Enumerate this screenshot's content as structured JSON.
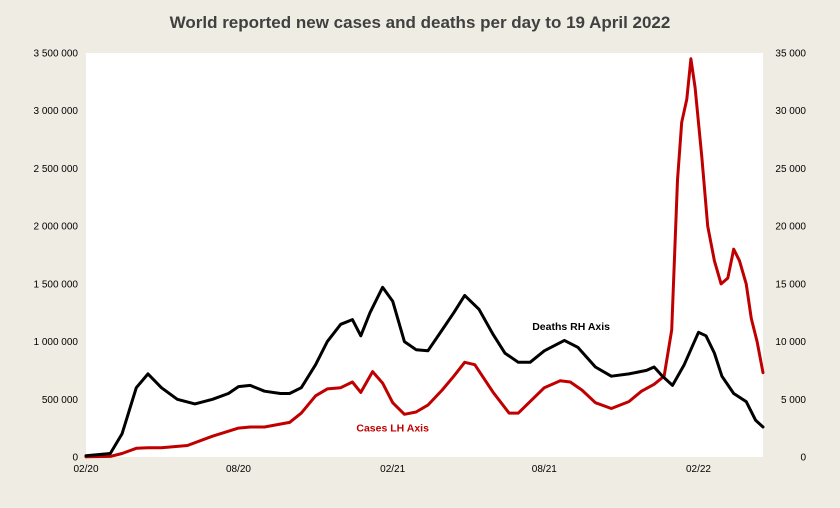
{
  "chart_data": {
    "type": "line",
    "title": "World reported new cases and deaths per day to 19 April 2022",
    "x_ticks": [
      "02/20",
      "08/20",
      "02/21",
      "08/21",
      "02/22"
    ],
    "x_range": [
      "2020-02-01",
      "2022-04-19"
    ],
    "y_left": {
      "ticks": [
        "0",
        "500 000",
        "1 000 000",
        "1 500 000",
        "2 000 000",
        "2 500 000",
        "3 000 000",
        "3 500 000"
      ],
      "range": [
        0,
        3500000
      ]
    },
    "y_right": {
      "ticks": [
        "0",
        "5 000",
        "10 000",
        "15 000",
        "20 000",
        "25 000",
        "30 000",
        "35 000"
      ],
      "range": [
        0,
        35000
      ]
    },
    "series": [
      {
        "name": "Cases LH Axis",
        "axis": "left",
        "color": "#c00000",
        "points": [
          [
            "2020-02-01",
            2000
          ],
          [
            "2020-03-01",
            5000
          ],
          [
            "2020-03-15",
            30000
          ],
          [
            "2020-04-01",
            75000
          ],
          [
            "2020-04-15",
            80000
          ],
          [
            "2020-05-01",
            80000
          ],
          [
            "2020-06-01",
            100000
          ],
          [
            "2020-07-01",
            180000
          ],
          [
            "2020-08-01",
            250000
          ],
          [
            "2020-08-15",
            260000
          ],
          [
            "2020-09-01",
            260000
          ],
          [
            "2020-10-01",
            300000
          ],
          [
            "2020-10-15",
            380000
          ],
          [
            "2020-11-01",
            530000
          ],
          [
            "2020-11-15",
            590000
          ],
          [
            "2020-12-01",
            600000
          ],
          [
            "2020-12-15",
            650000
          ],
          [
            "2020-12-25",
            560000
          ],
          [
            "2021-01-08",
            740000
          ],
          [
            "2021-01-20",
            640000
          ],
          [
            "2021-02-01",
            470000
          ],
          [
            "2021-02-15",
            370000
          ],
          [
            "2021-03-01",
            390000
          ],
          [
            "2021-03-15",
            450000
          ],
          [
            "2021-04-01",
            580000
          ],
          [
            "2021-04-15",
            700000
          ],
          [
            "2021-04-28",
            820000
          ],
          [
            "2021-05-10",
            800000
          ],
          [
            "2021-06-01",
            560000
          ],
          [
            "2021-06-20",
            380000
          ],
          [
            "2021-07-01",
            380000
          ],
          [
            "2021-07-15",
            480000
          ],
          [
            "2021-08-01",
            600000
          ],
          [
            "2021-08-20",
            660000
          ],
          [
            "2021-09-01",
            650000
          ],
          [
            "2021-09-15",
            580000
          ],
          [
            "2021-10-01",
            470000
          ],
          [
            "2021-10-20",
            420000
          ],
          [
            "2021-11-10",
            480000
          ],
          [
            "2021-11-25",
            570000
          ],
          [
            "2021-12-10",
            630000
          ],
          [
            "2021-12-22",
            700000
          ],
          [
            "2021-12-31",
            1100000
          ],
          [
            "2022-01-07",
            2400000
          ],
          [
            "2022-01-12",
            2900000
          ],
          [
            "2022-01-18",
            3100000
          ],
          [
            "2022-01-23",
            3450000
          ],
          [
            "2022-01-28",
            3200000
          ],
          [
            "2022-02-05",
            2600000
          ],
          [
            "2022-02-12",
            2000000
          ],
          [
            "2022-02-20",
            1700000
          ],
          [
            "2022-02-28",
            1500000
          ],
          [
            "2022-03-08",
            1550000
          ],
          [
            "2022-03-15",
            1800000
          ],
          [
            "2022-03-22",
            1700000
          ],
          [
            "2022-03-30",
            1500000
          ],
          [
            "2022-04-05",
            1200000
          ],
          [
            "2022-04-12",
            1000000
          ],
          [
            "2022-04-19",
            730000
          ]
        ]
      },
      {
        "name": "Deaths RH Axis",
        "axis": "right",
        "color": "#000000",
        "points": [
          [
            "2020-02-01",
            100
          ],
          [
            "2020-03-01",
            300
          ],
          [
            "2020-03-15",
            2000
          ],
          [
            "2020-04-01",
            6000
          ],
          [
            "2020-04-15",
            7200
          ],
          [
            "2020-05-01",
            6000
          ],
          [
            "2020-05-20",
            5000
          ],
          [
            "2020-06-10",
            4600
          ],
          [
            "2020-07-01",
            5000
          ],
          [
            "2020-07-20",
            5500
          ],
          [
            "2020-08-01",
            6100
          ],
          [
            "2020-08-15",
            6200
          ],
          [
            "2020-09-01",
            5700
          ],
          [
            "2020-09-20",
            5500
          ],
          [
            "2020-10-01",
            5500
          ],
          [
            "2020-10-15",
            6000
          ],
          [
            "2020-11-01",
            8000
          ],
          [
            "2020-11-15",
            10000
          ],
          [
            "2020-12-01",
            11500
          ],
          [
            "2020-12-15",
            11900
          ],
          [
            "2020-12-25",
            10500
          ],
          [
            "2021-01-05",
            12500
          ],
          [
            "2021-01-20",
            14700
          ],
          [
            "2021-02-01",
            13500
          ],
          [
            "2021-02-15",
            10000
          ],
          [
            "2021-03-01",
            9300
          ],
          [
            "2021-03-15",
            9200
          ],
          [
            "2021-04-01",
            11000
          ],
          [
            "2021-04-15",
            12500
          ],
          [
            "2021-04-28",
            14000
          ],
          [
            "2021-05-15",
            12800
          ],
          [
            "2021-06-01",
            10600
          ],
          [
            "2021-06-15",
            9000
          ],
          [
            "2021-07-01",
            8200
          ],
          [
            "2021-07-15",
            8200
          ],
          [
            "2021-08-01",
            9200
          ],
          [
            "2021-08-25",
            10100
          ],
          [
            "2021-09-10",
            9500
          ],
          [
            "2021-10-01",
            7800
          ],
          [
            "2021-10-20",
            7000
          ],
          [
            "2021-11-10",
            7200
          ],
          [
            "2021-12-01",
            7500
          ],
          [
            "2021-12-10",
            7800
          ],
          [
            "2021-12-20",
            7000
          ],
          [
            "2022-01-01",
            6200
          ],
          [
            "2022-01-15",
            8000
          ],
          [
            "2022-02-01",
            10800
          ],
          [
            "2022-02-10",
            10500
          ],
          [
            "2022-02-20",
            9000
          ],
          [
            "2022-03-01",
            7000
          ],
          [
            "2022-03-15",
            5500
          ],
          [
            "2022-03-30",
            4800
          ],
          [
            "2022-04-10",
            3200
          ],
          [
            "2022-04-19",
            2600
          ]
        ]
      }
    ],
    "annotations": [
      {
        "text": "Deaths RH Axis",
        "at": [
          "2021-09-02",
          11000
        ],
        "axis": "right",
        "color": "#000000"
      },
      {
        "text": "Cases LH Axis",
        "at": [
          "2021-02-01",
          220000
        ],
        "axis": "left",
        "color": "#c00000"
      }
    ],
    "grid": false,
    "legend": "none"
  }
}
